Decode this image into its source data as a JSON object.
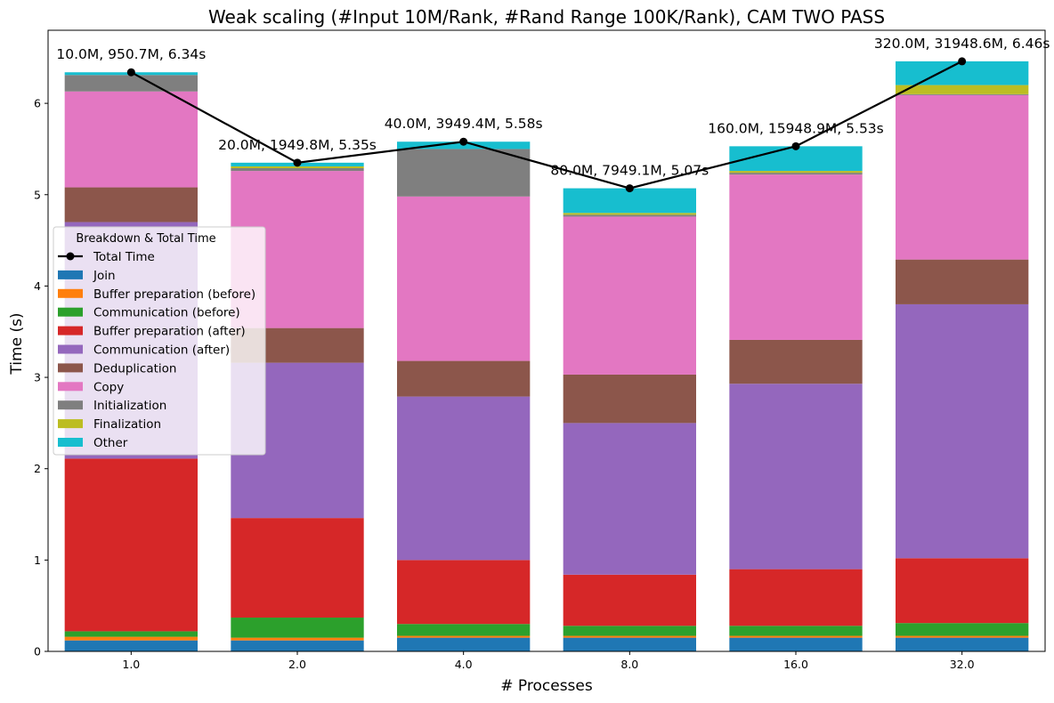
{
  "chart_data": {
    "type": "bar",
    "stacked": true,
    "title": "Weak scaling (#Input 10M/Rank, #Rand Range 100K/Rank), CAM TWO PASS",
    "xlabel": "# Processes",
    "ylabel": "Time (s)",
    "categories": [
      "1.0",
      "2.0",
      "4.0",
      "8.0",
      "16.0",
      "32.0"
    ],
    "ylim": [
      0,
      6.8
    ],
    "yticks": [
      0,
      1,
      2,
      3,
      4,
      5,
      6
    ],
    "legend_title": "Breakdown & Total Time",
    "legend_position": "center-left",
    "series": [
      {
        "name": "Join",
        "color": "#1f77b4",
        "values": [
          0.12,
          0.12,
          0.15,
          0.15,
          0.15,
          0.15
        ]
      },
      {
        "name": "Buffer preparation (before)",
        "color": "#ff7f0e",
        "values": [
          0.04,
          0.03,
          0.02,
          0.02,
          0.02,
          0.02
        ]
      },
      {
        "name": "Communication (before)",
        "color": "#2ca02c",
        "values": [
          0.06,
          0.22,
          0.13,
          0.11,
          0.11,
          0.14
        ]
      },
      {
        "name": "Buffer preparation (after)",
        "color": "#d62728",
        "values": [
          1.89,
          1.09,
          0.7,
          0.56,
          0.62,
          0.71
        ]
      },
      {
        "name": "Communication (after)",
        "color": "#9467bd",
        "values": [
          2.59,
          1.7,
          1.79,
          1.66,
          2.03,
          2.78
        ]
      },
      {
        "name": "Deduplication",
        "color": "#8c564b",
        "values": [
          0.38,
          0.38,
          0.39,
          0.53,
          0.48,
          0.49
        ]
      },
      {
        "name": "Copy",
        "color": "#e377c2",
        "values": [
          1.05,
          1.72,
          1.8,
          1.73,
          1.81,
          1.8
        ]
      },
      {
        "name": "Initialization",
        "color": "#7f7f7f",
        "values": [
          0.18,
          0.03,
          0.52,
          0.02,
          0.02,
          0.01
        ]
      },
      {
        "name": "Finalization",
        "color": "#bcbd22",
        "values": [
          0.0,
          0.02,
          0.0,
          0.02,
          0.02,
          0.1
        ]
      },
      {
        "name": "Other",
        "color": "#17becf",
        "values": [
          0.03,
          0.04,
          0.08,
          0.27,
          0.27,
          0.26
        ]
      }
    ],
    "total_time": {
      "name": "Total Time",
      "color": "#000000",
      "values": [
        6.34,
        5.35,
        5.58,
        5.07,
        5.53,
        6.46
      ],
      "annotations": [
        "10.0M, 950.7M, 6.34s",
        "20.0M, 1949.8M, 5.35s",
        "40.0M, 3949.4M, 5.58s",
        "80.0M, 7949.1M, 5.07s",
        "160.0M, 15948.9M, 5.53s",
        "320.0M, 31948.6M, 6.46s"
      ]
    }
  }
}
